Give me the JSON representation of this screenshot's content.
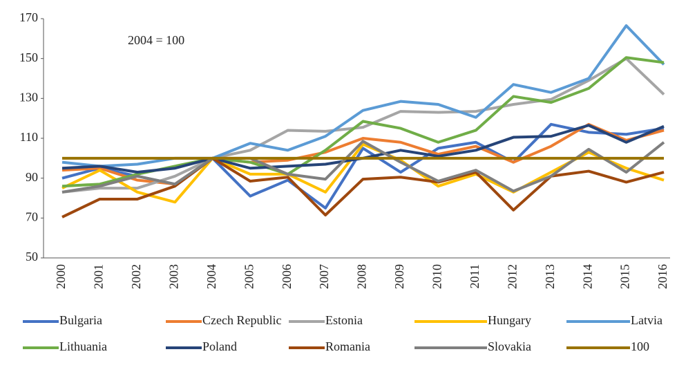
{
  "chart_data": {
    "type": "line",
    "annotation": "2004 = 100",
    "categories": [
      "2000",
      "2001",
      "2002",
      "2003",
      "2004",
      "2005",
      "2006",
      "2007",
      "2008",
      "2009",
      "2010",
      "2011",
      "2012",
      "2013",
      "2014",
      "2015",
      "2016"
    ],
    "ylim": [
      50,
      170
    ],
    "yticks": [
      50,
      70,
      90,
      110,
      130,
      150,
      170
    ],
    "grid": false,
    "legend": "bottom",
    "series": [
      {
        "name": "Bulgaria",
        "color": "#4472c4",
        "values": [
          90,
          95,
          91,
          87,
          100,
          81,
          89,
          75,
          105,
          93,
          105,
          108,
          98,
          117,
          113,
          112,
          115
        ]
      },
      {
        "name": "Czech Republic",
        "color": "#ed7d31",
        "values": [
          94,
          95,
          89,
          87,
          100,
          98,
          99,
          103,
          110,
          108,
          102,
          106,
          98,
          106,
          117,
          109,
          114
        ]
      },
      {
        "name": "Estonia",
        "color": "#a5a5a5",
        "values": [
          83,
          85,
          85,
          91,
          100,
          104,
          114,
          113.5,
          115.5,
          123.5,
          123,
          123.5,
          127,
          129.5,
          139,
          150,
          132
        ]
      },
      {
        "name": "Hungary",
        "color": "#ffc000",
        "values": [
          85,
          94,
          83,
          78,
          100,
          92,
          92,
          83,
          107,
          99,
          86,
          92,
          83,
          93,
          103,
          95,
          89
        ]
      },
      {
        "name": "Latvia",
        "color": "#5b9bd5",
        "values": [
          98,
          96,
          97,
          100,
          100,
          107.5,
          104,
          111,
          124,
          128.5,
          127,
          120.5,
          137,
          133,
          140,
          166.5,
          147
        ]
      },
      {
        "name": "Lithuania",
        "color": "#70ad47",
        "values": [
          86,
          87,
          92,
          96,
          100,
          98,
          92,
          104,
          118.5,
          115,
          108,
          114,
          131,
          128,
          135,
          150.5,
          148
        ]
      },
      {
        "name": "Poland",
        "color": "#264478",
        "values": [
          95,
          96,
          93,
          95,
          100,
          95,
          96,
          97,
          100,
          104,
          101,
          104,
          110.5,
          111,
          116.5,
          108,
          116
        ]
      },
      {
        "name": "Romania",
        "color": "#9e480e",
        "values": [
          70.5,
          79.5,
          79.5,
          86,
          100,
          88.5,
          90.5,
          71.5,
          89.5,
          90.5,
          88,
          93,
          74,
          91,
          93.5,
          88,
          93
        ]
      },
      {
        "name": "Slovakia",
        "color": "#7f7f7f",
        "values": [
          83,
          86,
          91,
          87,
          100,
          100,
          92,
          89.5,
          108.5,
          98,
          88.5,
          94,
          83.5,
          91,
          104.5,
          93,
          108
        ]
      },
      {
        "name": "100",
        "color": "#997300",
        "values": [
          100,
          100,
          100,
          100,
          100,
          100,
          100,
          100,
          100,
          100,
          100,
          100,
          100,
          100,
          100,
          100,
          100
        ]
      }
    ]
  }
}
